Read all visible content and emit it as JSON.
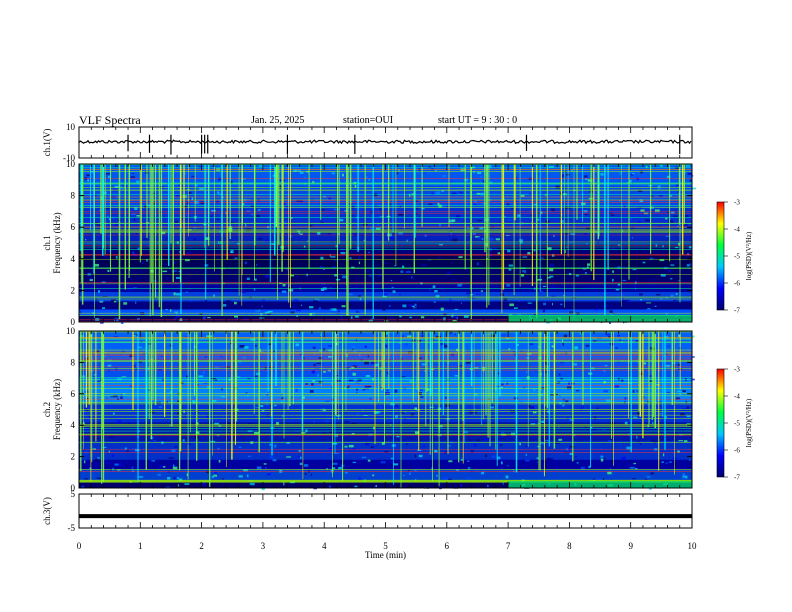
{
  "header": {
    "title": "VLF Spectra",
    "date": "Jan. 25, 2025",
    "station": "station=OUI",
    "start": "start UT =  9 : 30 : 0"
  },
  "chart_data": {
    "type": "heatmap",
    "xlabel": "Time (min)",
    "xlim": [
      0,
      10
    ],
    "x_ticks": [
      "0",
      "1",
      "2",
      "3",
      "4",
      "5",
      "6",
      "7",
      "8",
      "9",
      "10"
    ],
    "panels": [
      {
        "id": "ch1-waveform",
        "type": "line",
        "ylabel": "ch.1(V)",
        "ylim": [
          -10,
          10
        ],
        "y_ticks": [
          "10",
          "-10"
        ],
        "baseline": 0.5,
        "spikes_min": [
          0.8,
          1.15,
          1.5,
          2.0,
          2.05,
          2.1,
          3.4,
          4.5,
          7.3,
          9.8
        ]
      },
      {
        "id": "ch1-spectrogram",
        "type": "heatmap",
        "ylabel": "ch.1\nFrequency (kHz)",
        "ylim": [
          0,
          10
        ],
        "y_ticks": [
          "0",
          "2",
          "4",
          "6",
          "8",
          "10"
        ],
        "colorbar": {
          "label": "log(PSD)(V²/Hz)",
          "ticks": [
            "-3",
            "-4",
            "-5",
            "-6",
            "-7"
          ],
          "range": [
            -7,
            -3
          ]
        }
      },
      {
        "id": "ch2-spectrogram",
        "type": "heatmap",
        "ylabel": "ch.2\nFrequency (kHz)",
        "ylim": [
          0,
          10
        ],
        "y_ticks": [
          "0",
          "2",
          "4",
          "6",
          "8",
          "10"
        ],
        "colorbar": {
          "label": "log(PSD)(V²/Hz)",
          "ticks": [
            "-3",
            "-4",
            "-5",
            "-6",
            "-7"
          ],
          "range": [
            -7,
            -3
          ]
        }
      },
      {
        "id": "ch3-waveform",
        "type": "line",
        "ylabel": "ch.3(V)",
        "ylim": [
          -5,
          5
        ],
        "y_ticks": [
          "5",
          "-5"
        ],
        "constant_value": -1.5
      }
    ]
  }
}
